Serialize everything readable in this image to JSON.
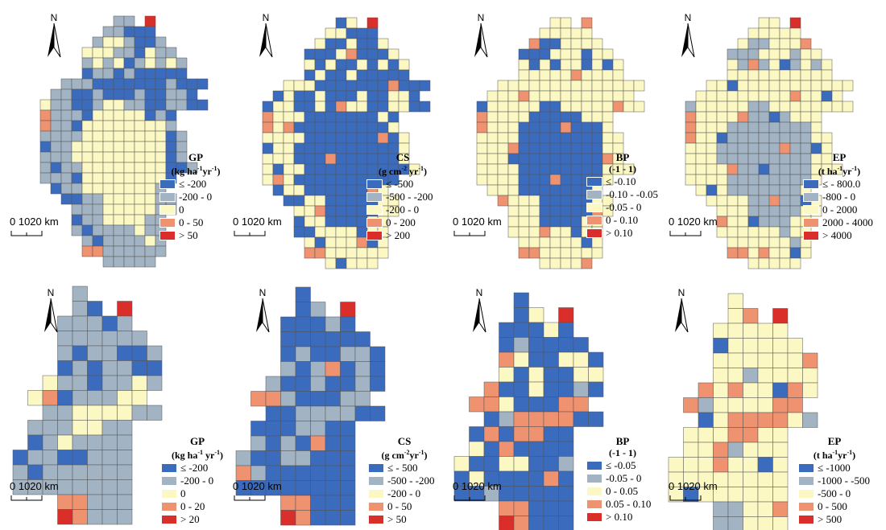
{
  "colors": {
    "class1": "#3b6bbd",
    "class2": "#a2b3c3",
    "class3": "#fcf8c4",
    "class4": "#ef9270",
    "class5": "#d92e2a",
    "grid_line": "#555555"
  },
  "common": {
    "north_label": "N",
    "scale_label": "0 1020 km"
  },
  "panels": [
    {
      "id": "top-gp",
      "title": "GP",
      "unit": "(kg ha-1yr-1)",
      "unit_parts": [
        "(kg ha",
        "-1",
        "yr",
        "-1",
        ")"
      ],
      "legend": [
        "≤ -200",
        "-200 - 0",
        "0",
        "0 - 50",
        "> 50"
      ]
    },
    {
      "id": "top-cs",
      "title": "CS",
      "unit": "(g cm-2 yr-1)",
      "unit_parts": [
        "(g cm",
        "-2",
        " yr",
        "-1",
        ")"
      ],
      "legend": [
        "≤ -500",
        "-500 - -200",
        "-200 - 0",
        "0 - 200",
        "> 200"
      ]
    },
    {
      "id": "top-bp",
      "title": "BP",
      "unit": "(-1 - 1)",
      "unit_parts": [
        "(-1 - 1)",
        "",
        "",
        "",
        ""
      ],
      "legend": [
        "≤ -0.10",
        "-0.10 - -0.05",
        "-0.05 - 0",
        "0 - 0.10",
        "> 0.10"
      ]
    },
    {
      "id": "top-ep",
      "title": "EP",
      "unit": "(t ha-1yr-1)",
      "unit_parts": [
        "(t ha",
        "-1",
        "yr",
        "-1",
        ")"
      ],
      "legend": [
        "≤ - 800.0",
        "-800 - 0",
        "0 - 2000",
        "2000 - 4000",
        "> 4000"
      ]
    },
    {
      "id": "bottom-gp",
      "title": "GP",
      "unit": "(kg ha-1 yr-1)",
      "unit_parts": [
        "(kg ha",
        "-1",
        " yr",
        "-1",
        ")"
      ],
      "legend": [
        "≤ -200",
        "-200 - 0",
        "0",
        "0 - 20",
        "> 20"
      ]
    },
    {
      "id": "bottom-cs",
      "title": "CS",
      "unit": "(g cm-2yr-1)",
      "unit_parts": [
        "(g cm",
        "-2",
        "yr",
        "-1",
        ")"
      ],
      "legend": [
        "≤ - 500",
        "-500 - -200",
        "-200 - 0",
        "0 - 50",
        "> 50"
      ]
    },
    {
      "id": "bottom-bp",
      "title": "BP",
      "unit": "(-1 - 1)",
      "unit_parts": [
        "(-1 - 1)",
        "",
        "",
        "",
        ""
      ],
      "legend": [
        "≤ -0.05",
        "-0.05 - 0",
        "0 - 0.05",
        "0.05 - 0.10",
        "> 0.10"
      ]
    },
    {
      "id": "bottom-ep",
      "title": "EP",
      "unit": "(t ha-1yr-1)",
      "unit_parts": [
        "(t ha",
        "-1",
        "yr",
        "-1",
        ")"
      ],
      "legend": [
        "≤ -1000",
        "-1000 - -500",
        "-500 - 0",
        "0 - 500",
        "> 500"
      ]
    }
  ],
  "grids": {
    "fine": [
      ".........22.5.......",
      "........22111.......",
      ".......2332112......",
      "......333221322.....",
      "......2323123232....",
      "......1221211111....",
      "....22211111112111..",
      "...22112111211221...",
      "..3221123322112211..",
      "..4222133333121.....",
      "..4221333333332.....",
      "..22223333333312....",
      "..12233333333312....",
      "..22233333333312....",
      "..212233333333112...",
      "..2221333333331.....",
      "...12233333332......",
      "....11223333322.....",
      ".....2223333322.....",
      ".....122333322......",
      ".....212222322......",
      "......21222232......",
      "......44222222......",
      "........22222......."
    ],
    "coarse": [
      "....2......",
      "....21.5...",
      "...22212...",
      "...222222..",
      "...2122112.",
      "...1212211.",
      "..32212232.",
      ".34122233..",
      "..22333322.",
      ".2223322...",
      ".1232222...",
      "12211222...",
      "21222222...",
      "22222222...",
      "...44222...",
      "...54222..."
    ]
  }
}
